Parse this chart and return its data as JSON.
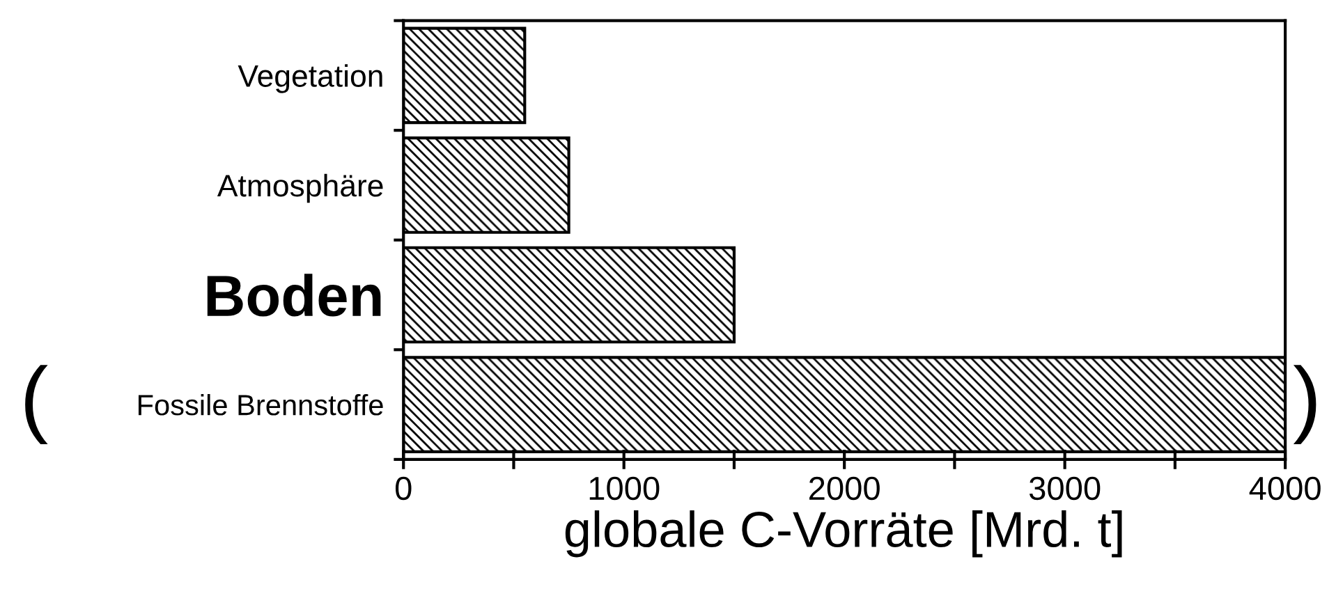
{
  "chart_data": {
    "type": "bar",
    "orientation": "horizontal",
    "xlabel": "globale C-Vorräte [Mrd. t]",
    "categories": [
      "Vegetation",
      "Atmosphäre",
      "Boden",
      "Fossile Brennstoffe"
    ],
    "values": [
      550,
      750,
      1500,
      4000
    ],
    "color": "#000000",
    "xlim": [
      0,
      4000
    ],
    "xticks": [
      0,
      {
        "value": 500,
        "label": null
      },
      1000,
      {
        "value": 1500,
        "label": null
      },
      2000,
      {
        "value": 2500,
        "label": null
      },
      3000,
      {
        "value": 3500,
        "label": null
      },
      4000
    ],
    "grid": false,
    "legend": false,
    "annotations": [
      "(",
      ")"
    ]
  }
}
